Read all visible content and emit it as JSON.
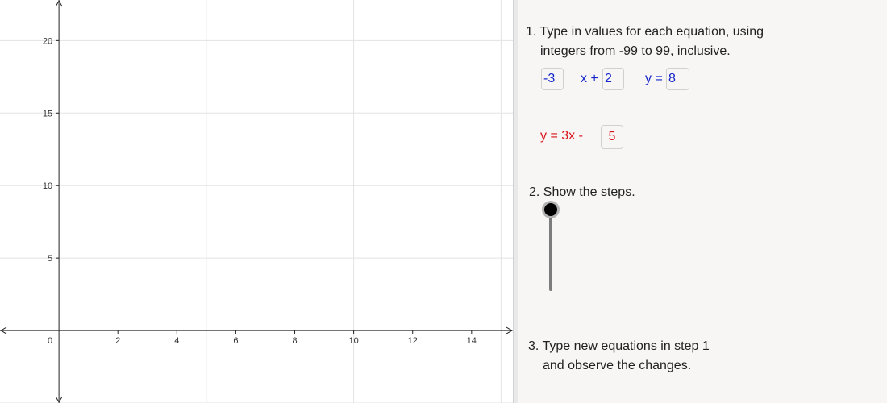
{
  "chart_data": {
    "type": "line",
    "title": "",
    "xlabel": "",
    "ylabel": "",
    "xlim": [
      -2,
      15.4
    ],
    "ylim": [
      -5,
      22.8
    ],
    "x_ticks": [
      0,
      2,
      4,
      6,
      8,
      10,
      12,
      14
    ],
    "y_ticks": [
      5,
      10,
      15,
      20
    ],
    "x_tick_labels": [
      "0",
      "2",
      "4",
      "6",
      "8",
      "10",
      "12",
      "14"
    ],
    "y_tick_labels": [
      "5",
      "10",
      "15",
      "20"
    ],
    "grid": true,
    "series": []
  },
  "step1": {
    "heading": "1. Type in values for each equation, using",
    "heading_line2": "integers from -99 to 99, inclusive.",
    "eq1": {
      "coef_value": "-3",
      "mid_text": "x +",
      "const_value": "2",
      "y_label": "y =",
      "y_value": "8"
    },
    "eq2": {
      "label": "y = 3x -",
      "value": "5"
    }
  },
  "step2": {
    "heading": "2. Show the steps.",
    "slider_value": 0
  },
  "step3": {
    "heading": "3. Type new equations in step 1",
    "heading_line2": "and observe the changes."
  },
  "colors": {
    "blue": "#1526c9",
    "red": "#d9141c",
    "grid": "#e3e3e3",
    "axis": "#222222",
    "panel_bg": "#f7f6f5"
  }
}
